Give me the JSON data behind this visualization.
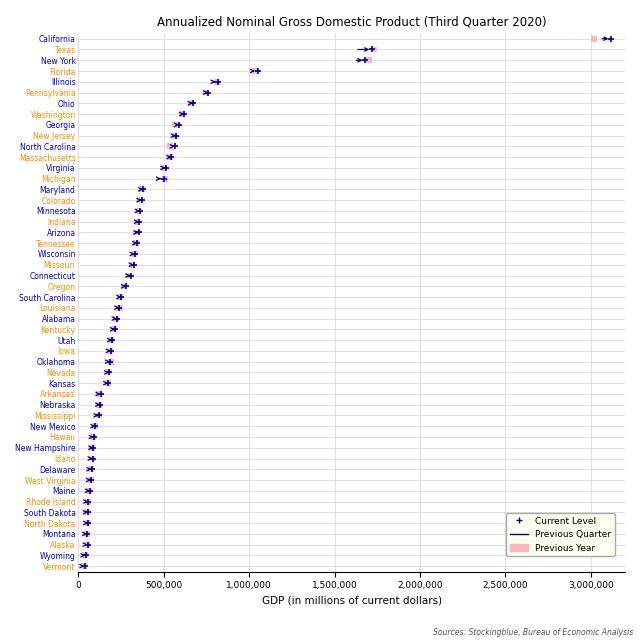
{
  "title": "Annualized Nominal Gross Domestic Product (Third Quarter 2020)",
  "xlabel": "GDP (in millions of current dollars)",
  "source": "Sources: Stockingblue, Bureau of Economic Analysis",
  "states": [
    "California",
    "Texas",
    "New York",
    "Florida",
    "Illinois",
    "Pennsylvania",
    "Ohio",
    "Washington",
    "Georgia",
    "New Jersey",
    "North Carolina",
    "Massachusetts",
    "Virginia",
    "Michigan",
    "Maryland",
    "Colorado",
    "Minnesota",
    "Indiana",
    "Arizona",
    "Tennessee",
    "Wisconsin",
    "Missouri",
    "Connecticut",
    "Oregon",
    "South Carolina",
    "Louisiana",
    "Alabama",
    "Kentucky",
    "Utah",
    "Iowa",
    "Oklahoma",
    "Nevada",
    "Kansas",
    "Arkansas",
    "Nebraska",
    "Mississippi",
    "New Mexico",
    "Hawaii",
    "New Hampshire",
    "Idaho",
    "Delaware",
    "West Virginia",
    "Maine",
    "Rhode Island",
    "South Dakota",
    "North Dakota",
    "Montana",
    "Alaska",
    "Wyoming",
    "Vermont"
  ],
  "label_colors": [
    "#0000CD",
    "#FF8C00",
    "#0000CD",
    "#FF8C00",
    "#0000CD",
    "#FF8C00",
    "#0000CD",
    "#FF8C00",
    "#0000CD",
    "#FF8C00",
    "#0000CD",
    "#FF8C00",
    "#0000CD",
    "#FF8C00",
    "#0000CD",
    "#FF8C00",
    "#0000CD",
    "#FF8C00",
    "#0000CD",
    "#FF8C00",
    "#0000CD",
    "#FF8C00",
    "#0000CD",
    "#FF8C00",
    "#0000CD",
    "#FF8C00",
    "#0000CD",
    "#FF8C00",
    "#0000CD",
    "#FF8C00",
    "#0000CD",
    "#FF8C00",
    "#0000CD",
    "#FF8C00",
    "#0000CD",
    "#FF8C00",
    "#0000CD",
    "#FF8C00",
    "#0000CD",
    "#FF8C00",
    "#0000CD",
    "#FF8C00",
    "#0000CD",
    "#FF8C00",
    "#0000CD",
    "#FF8C00",
    "#0000CD",
    "#FF8C00",
    "#0000CD",
    "#FF8C00"
  ],
  "current": [
    3120000,
    1720000,
    1680000,
    1050000,
    820000,
    760000,
    670000,
    620000,
    590000,
    570000,
    565000,
    545000,
    510000,
    500000,
    380000,
    370000,
    360000,
    355000,
    352000,
    345000,
    330000,
    325000,
    305000,
    280000,
    252000,
    240000,
    225000,
    215000,
    198000,
    190000,
    185000,
    180000,
    175000,
    130000,
    128000,
    118000,
    100000,
    90000,
    88000,
    84000,
    77000,
    74000,
    68000,
    58000,
    55000,
    58000,
    52000,
    55000,
    42000,
    36000
  ],
  "prev_quarter": [
    3050000,
    1620000,
    1610000,
    1005000,
    775000,
    730000,
    640000,
    598000,
    562000,
    547000,
    535000,
    520000,
    490000,
    460000,
    367000,
    355000,
    345000,
    340000,
    336000,
    330000,
    310000,
    310000,
    292000,
    267000,
    237000,
    227000,
    212000,
    205000,
    187000,
    183000,
    175000,
    172000,
    168000,
    122000,
    123000,
    113000,
    96000,
    87000,
    84000,
    80000,
    73000,
    70000,
    64000,
    55000,
    52000,
    55000,
    50000,
    53000,
    40000,
    34000
  ],
  "prev_year": [
    3020000,
    1730000,
    1700000,
    1030000,
    810000,
    745000,
    660000,
    607000,
    568000,
    568000,
    538000,
    536000,
    503000,
    508000,
    374000,
    358000,
    352000,
    345000,
    338000,
    337000,
    323000,
    313000,
    296000,
    269000,
    241000,
    243000,
    218000,
    208000,
    193000,
    183000,
    190000,
    172000,
    173000,
    122000,
    123000,
    120000,
    99000,
    88000,
    80000,
    79000,
    74000,
    72000,
    64000,
    55000,
    51000,
    56000,
    50000,
    53000,
    39000,
    33000
  ],
  "current_color": "#00008B",
  "prev_quarter_color": "#00008B",
  "prev_year_color": "#FFB6C1",
  "grid_color": "#D3D3D3",
  "xlim": [
    0,
    3200000
  ],
  "xticks": [
    0,
    500000,
    1000000,
    1500000,
    2000000,
    2500000,
    3000000
  ],
  "figsize": [
    6.4,
    6.4
  ],
  "dpi": 100
}
